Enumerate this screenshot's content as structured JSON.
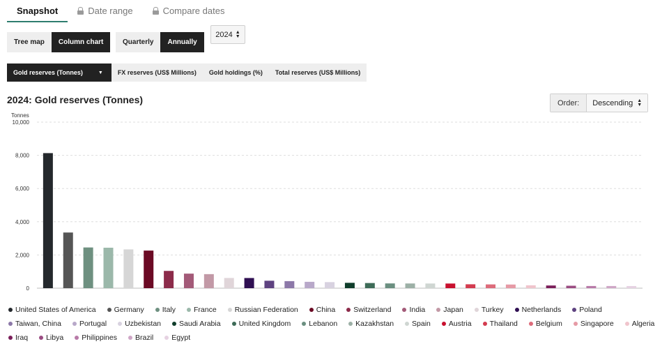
{
  "tabs": [
    {
      "label": "Snapshot",
      "active": true,
      "locked": false
    },
    {
      "label": "Date range",
      "active": false,
      "locked": true
    },
    {
      "label": "Compare dates",
      "active": false,
      "locked": true
    }
  ],
  "chart_type_buttons": [
    {
      "label": "Tree map",
      "active": false
    },
    {
      "label": "Column chart",
      "active": true
    }
  ],
  "period_buttons": [
    {
      "label": "Quarterly",
      "active": false
    },
    {
      "label": "Annually",
      "active": true
    }
  ],
  "year_select": {
    "value": "2024"
  },
  "metrics": [
    {
      "label": "Gold reserves (Tonnes)",
      "active": true
    },
    {
      "label": "FX reserves (US$ Millions)",
      "active": false
    },
    {
      "label": "Gold holdings (%)",
      "active": false
    },
    {
      "label": "Total reserves (US$ Millions)",
      "active": false
    }
  ],
  "order": {
    "label": "Order:",
    "value": "Descending"
  },
  "chart_data": {
    "type": "bar",
    "title": "2024: Gold reserves (Tonnes)",
    "ylabel": "Tonnes",
    "ylim": [
      0,
      10000
    ],
    "yticks": [
      0,
      2000,
      4000,
      6000,
      8000,
      10000
    ],
    "ytick_labels": [
      "0",
      "2,000",
      "4,000",
      "6,000",
      "8,000",
      "10,000"
    ],
    "grid": true,
    "legend_position": "bottom",
    "categories": [
      "United States of America",
      "Germany",
      "Italy",
      "France",
      "Russian Federation",
      "China",
      "Switzerland",
      "India",
      "Japan",
      "Turkey",
      "Netherlands",
      "Poland",
      "Taiwan, China",
      "Portugal",
      "Uzbekistan",
      "Saudi Arabia",
      "United Kingdom",
      "Lebanon",
      "Kazakhstan",
      "Spain",
      "Austria",
      "Thailand",
      "Belgium",
      "Singapore",
      "Algeria",
      "Iraq",
      "Libya",
      "Philippines",
      "Brazil",
      "Egypt"
    ],
    "values": [
      8133,
      3352,
      2452,
      2437,
      2336,
      2264,
      1040,
      876,
      846,
      615,
      612,
      448,
      424,
      383,
      365,
      323,
      310,
      287,
      284,
      282,
      280,
      235,
      227,
      220,
      174,
      162,
      147,
      131,
      130,
      127
    ],
    "colors": [
      "#24282c",
      "#555555",
      "#6e9080",
      "#9bb8aa",
      "#d6d6d6",
      "#6b0a24",
      "#8c2b4a",
      "#a35a78",
      "#c299a6",
      "#e0d5d9",
      "#2f0f52",
      "#5e4280",
      "#8c78a8",
      "#b8a8c9",
      "#d8d2e0",
      "#0f3d2b",
      "#3d6b57",
      "#6b8f80",
      "#9cb0a6",
      "#cfd6d2",
      "#c8102e",
      "#d33b4f",
      "#dd6b7a",
      "#e69aa5",
      "#f0c4cc",
      "#7b1f5a",
      "#9a4c82",
      "#b87aa8",
      "#cfa6c6",
      "#e6d2e2"
    ]
  }
}
